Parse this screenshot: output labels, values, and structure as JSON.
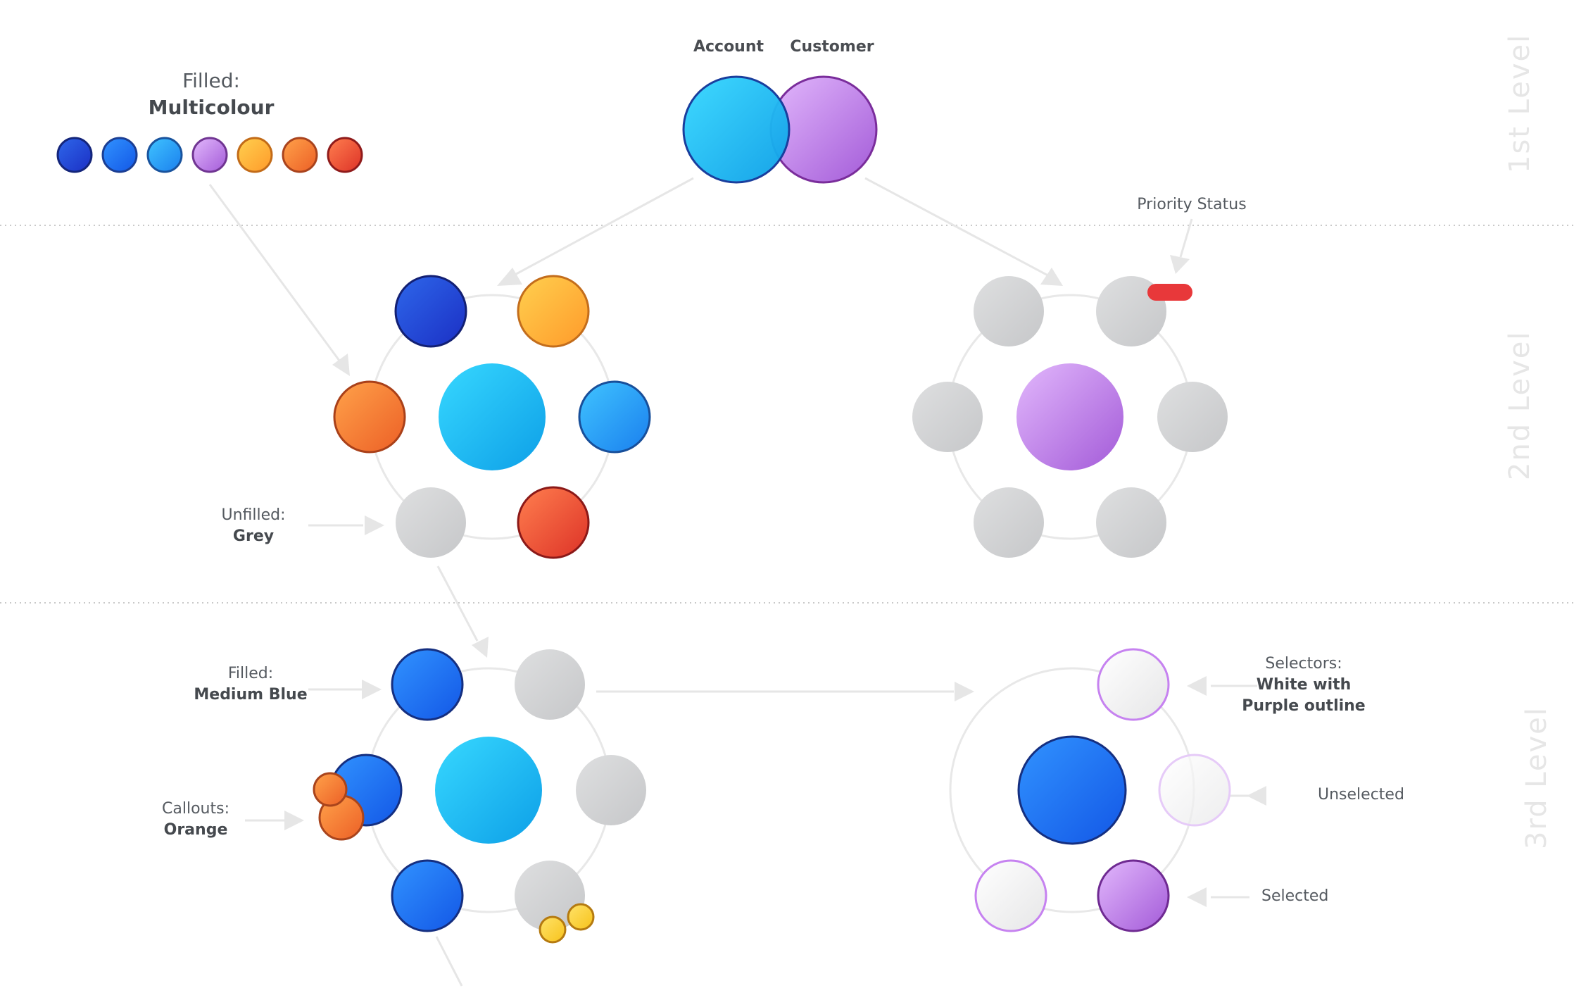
{
  "labels": {
    "account": "Account",
    "customer": "Customer",
    "filled_multicolour_line1": "Filled:",
    "filled_multicolour_line2": "Multicolour",
    "priority_status": "Priority Status",
    "unfilled_line1": "Unfilled:",
    "unfilled_line2": "Grey",
    "filled_medium_blue_line1": "Filled:",
    "filled_medium_blue_line2": "Medium Blue",
    "callouts_line1": "Callouts:",
    "callouts_line2": "Orange",
    "selectors_line1": "Selectors:",
    "selectors_line2": "White with",
    "selectors_line3": "Purple outline",
    "unselected": "Unselected",
    "selected": "Selected"
  },
  "levels": [
    "1st Level",
    "2nd Level",
    "3rd Level"
  ],
  "colors": {
    "dark_blue": "#1f3fcf",
    "medium_blue": "#1f6ff0",
    "cyan": "#1fb4ef",
    "purple": "#b57ae3",
    "yellow_orange": "#ffb33a",
    "orange": "#f57a36",
    "red": "#e24a38",
    "grey": "#d3d4d6",
    "guide": "#e6e6e6",
    "level_text": "#e6e6e6"
  }
}
